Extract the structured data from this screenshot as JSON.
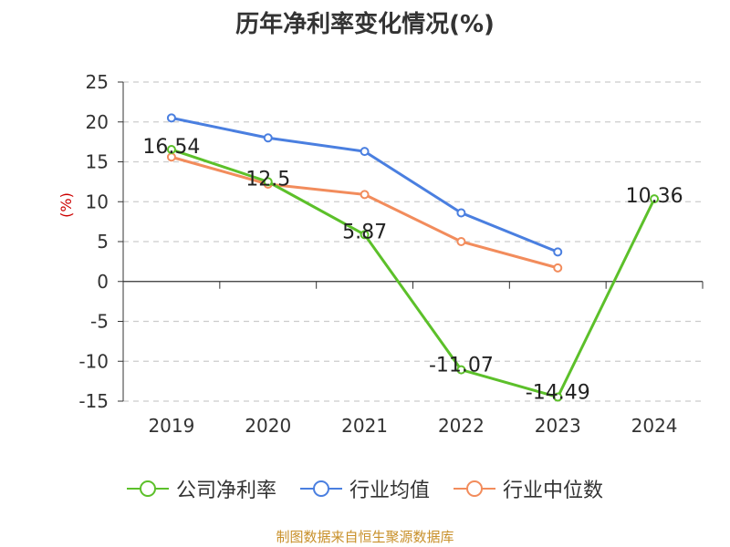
{
  "title": "历年净利率变化情况(%)",
  "source": "制图数据来自恒生聚源数据库",
  "chart_data": {
    "type": "line",
    "title": "历年净利率变化情况(%)",
    "ylabel": "(%)",
    "xlabel": "",
    "ylim": [
      -15,
      25
    ],
    "yticks": [
      -15,
      -10,
      -5,
      0,
      5,
      10,
      15,
      20,
      25
    ],
    "ytick_labels": [
      "-15",
      "-10",
      "-5",
      "0",
      "5",
      "10",
      "15",
      "20",
      "25"
    ],
    "categories": [
      "2019",
      "2020",
      "2021",
      "2022",
      "2023",
      "2024"
    ],
    "grid": true,
    "legend_position": "bottom",
    "series": [
      {
        "name": "公司净利率",
        "color": "#5cc02a",
        "values": [
          16.54,
          12.5,
          5.87,
          -11.07,
          -14.49,
          10.36
        ],
        "labels": [
          "16.54",
          "12.5",
          "5.87",
          "-11.07",
          "-14.49",
          "10.36"
        ]
      },
      {
        "name": "行业均值",
        "color": "#4a7fe0",
        "values": [
          20.5,
          18.0,
          16.3,
          8.6,
          3.7,
          null
        ]
      },
      {
        "name": "行业中位数",
        "color": "#f28c5c",
        "values": [
          15.6,
          12.2,
          10.9,
          5.0,
          1.7,
          null
        ]
      }
    ]
  }
}
